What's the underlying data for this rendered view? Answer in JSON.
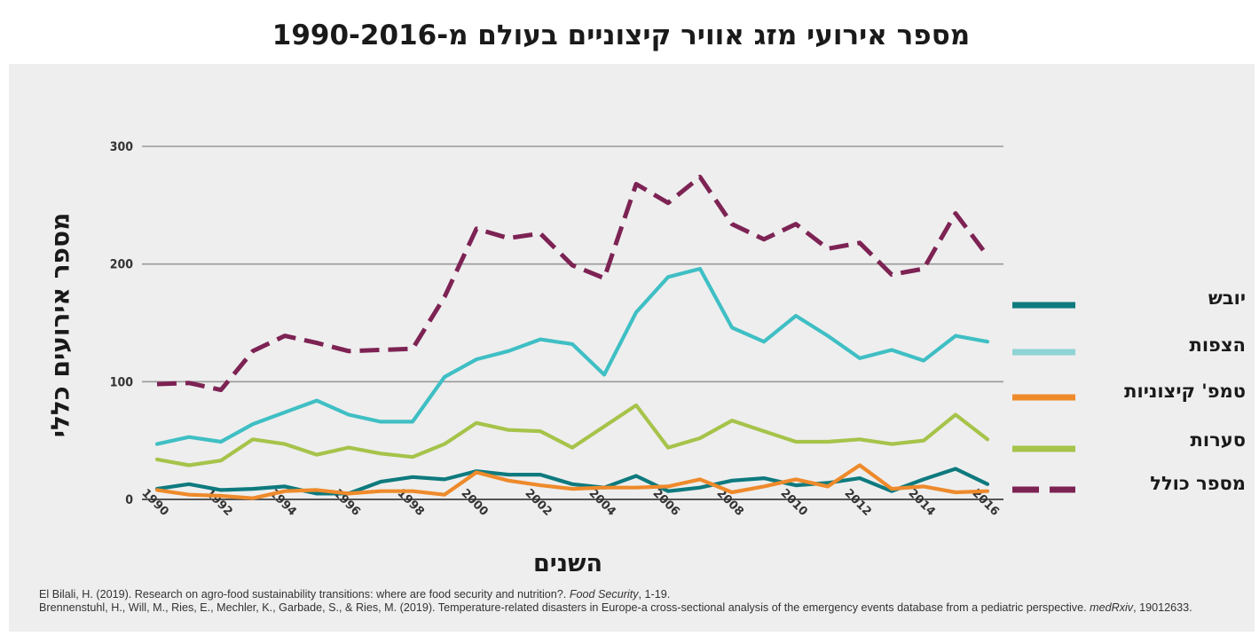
{
  "chart_data": {
    "type": "line",
    "title": "מספר אירועי מזג אוויר קיצוניים בעולם מ-1990-2016",
    "xlabel": "השנים",
    "ylabel": "מספר אירועים כללי",
    "ylim": [
      0,
      300
    ],
    "yticks": [
      "0",
      "100",
      "200",
      "300"
    ],
    "x": [
      1990,
      1991,
      1992,
      1993,
      1994,
      1995,
      1996,
      1997,
      1998,
      1999,
      2000,
      2001,
      2002,
      2003,
      2004,
      2005,
      2006,
      2007,
      2008,
      2009,
      2010,
      2011,
      2012,
      2013,
      2014,
      2015,
      2016
    ],
    "xticks": [
      "1990",
      "1992",
      "1994",
      "1996",
      "1998",
      "2000",
      "2002",
      "2004",
      "2006",
      "2008",
      "2010",
      "2012",
      "2014",
      "2016"
    ],
    "grid": "horizontal",
    "legend_position": "right",
    "series": [
      {
        "name": "יובש",
        "color": "#0e7a7e",
        "dash": false,
        "values": [
          9,
          13,
          8,
          9,
          11,
          5,
          5,
          15,
          19,
          17,
          24,
          21,
          21,
          13,
          10,
          20,
          7,
          10,
          16,
          18,
          12,
          14,
          18,
          7,
          17,
          26,
          13
        ]
      },
      {
        "name": "הצפות",
        "color": "#3fbfc4",
        "dash": false,
        "values": [
          47,
          53,
          49,
          64,
          74,
          84,
          72,
          66,
          66,
          104,
          119,
          126,
          136,
          132,
          106,
          159,
          189,
          196,
          146,
          134,
          156,
          139,
          120,
          127,
          118,
          139,
          134
        ]
      },
      {
        "name": "טמפ' קיצוניות",
        "color": "#ee8a2b",
        "dash": false,
        "values": [
          8,
          4,
          3,
          1,
          7,
          8,
          5,
          7,
          7,
          4,
          23,
          16,
          12,
          9,
          10,
          10,
          11,
          17,
          6,
          11,
          17,
          11,
          29,
          9,
          11,
          6,
          7
        ]
      },
      {
        "name": "סערות",
        "color": "#a6c34a",
        "dash": false,
        "values": [
          34,
          29,
          33,
          51,
          47,
          38,
          44,
          39,
          36,
          47,
          65,
          59,
          58,
          44,
          62,
          80,
          44,
          52,
          67,
          58,
          49,
          49,
          51,
          47,
          50,
          72,
          51
        ]
      },
      {
        "name": "מספר כולל",
        "color": "#7d2354",
        "dash": true,
        "values": [
          98,
          99,
          93,
          126,
          139,
          133,
          126,
          127,
          128,
          172,
          230,
          222,
          226,
          199,
          188,
          268,
          252,
          274,
          234,
          221,
          234,
          213,
          218,
          191,
          196,
          243,
          207
        ]
      }
    ],
    "legend_swatch_colors": [
      "#0e7a7e",
      "#8fd3d5",
      "#ee8a2b",
      "#a6c34a",
      "#7d2354"
    ]
  },
  "citations": {
    "line1_text": "El Bilali, H. (2019). Research on agro-food sustainability transitions: where are food security and nutrition?. ",
    "line1_journal": "Food Security",
    "line1_tail": ", 1-19.",
    "line2_text": "Brennenstuhl, H., Will, M., Ries, E., Mechler, K., Garbade, S., & Ries, M. (2019). Temperature-related disasters in Europe-a cross-sectional analysis of the emergency events database from a pediatric perspective. ",
    "line2_journal": "medRxiv",
    "line2_tail": ", 19012633."
  }
}
